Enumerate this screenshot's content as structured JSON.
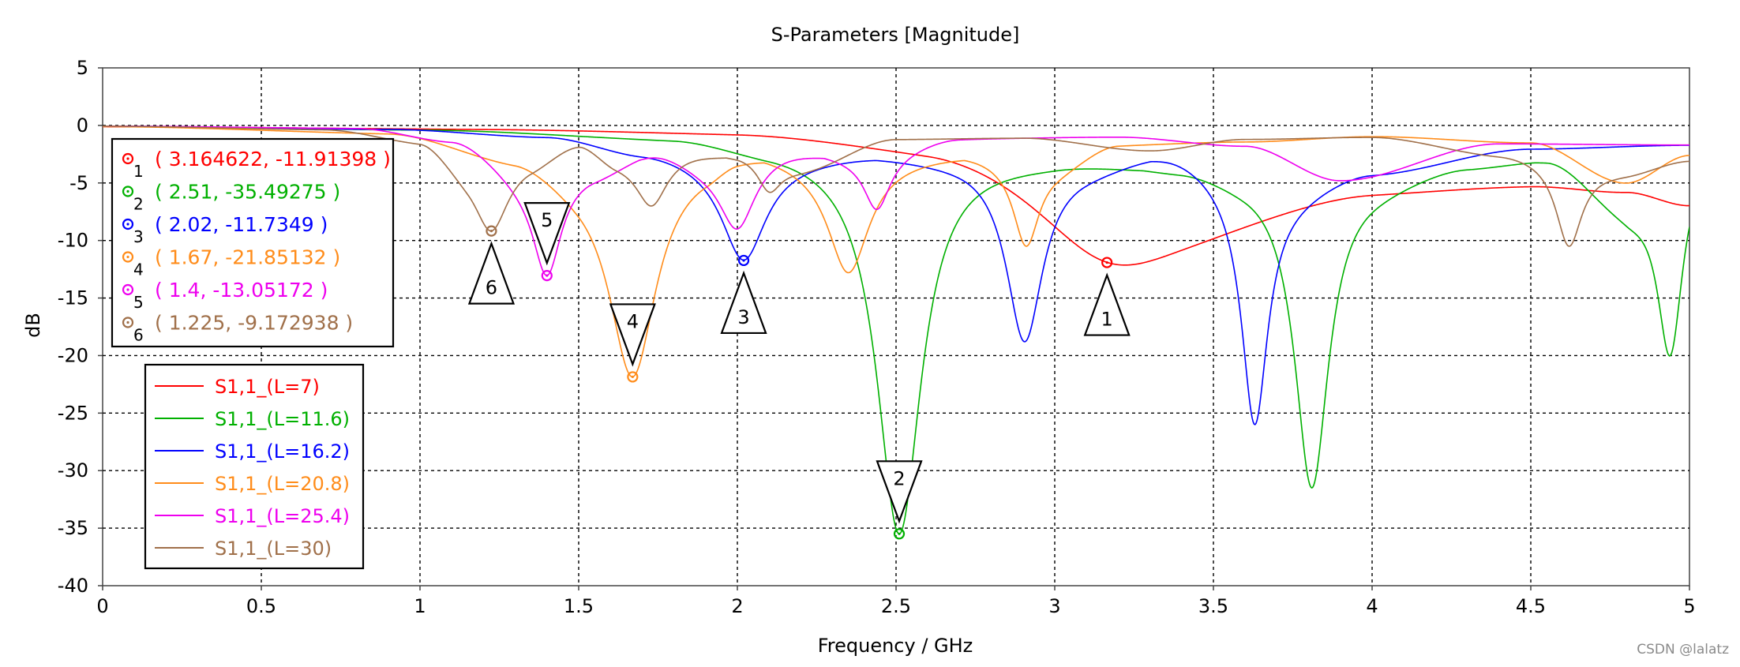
{
  "chart_data": {
    "type": "line",
    "title": "S-Parameters [Magnitude]",
    "xlabel": "Frequency / GHz",
    "ylabel": "dB",
    "xlim": [
      0,
      5
    ],
    "ylim": [
      -40,
      5
    ],
    "xticks": [
      0,
      0.5,
      1,
      1.5,
      2,
      2.5,
      3,
      3.5,
      4,
      4.5,
      5
    ],
    "xtick_labels": [
      "0",
      "0.5",
      "1",
      "1.5",
      "2",
      "2.5",
      "3",
      "3.5",
      "4",
      "4.5",
      "5"
    ],
    "yticks": [
      5,
      0,
      -5,
      -10,
      -15,
      -20,
      -25,
      -30,
      -35,
      -40
    ],
    "ytick_labels": [
      "5",
      "0",
      "-5",
      "-10",
      "-15",
      "-20",
      "-25",
      "-30",
      "-35",
      "-40"
    ],
    "grid": true,
    "legend_position": "lower-left",
    "series": [
      {
        "name": "S1,1_(L=7)",
        "color": "#ff0000",
        "base": [
          [
            0,
            -0.05
          ],
          [
            1.2,
            -0.2
          ],
          [
            2.0,
            -0.4
          ],
          [
            2.6,
            -1.2
          ],
          [
            3.5,
            -6.8
          ],
          [
            4.0,
            -5.3
          ],
          [
            4.5,
            -5.0
          ],
          [
            4.8,
            -5.6
          ],
          [
            5.0,
            -6.8
          ]
        ],
        "dips": [
          [
            3.165,
            -11.9,
            0.3
          ]
        ]
      },
      {
        "name": "S1,1_(L=11.6)",
        "color": "#00b000",
        "base": [
          [
            0,
            -0.05
          ],
          [
            1.0,
            -0.3
          ],
          [
            1.8,
            -0.9
          ],
          [
            2.1,
            -1.8
          ],
          [
            2.5,
            -2.3
          ],
          [
            3.0,
            -3.0
          ],
          [
            3.4,
            -3.7
          ],
          [
            3.6,
            -4.4
          ],
          [
            4.0,
            -4.8
          ],
          [
            4.3,
            -3.4
          ],
          [
            4.55,
            -3.0
          ],
          [
            4.8,
            -6.8
          ],
          [
            5.0,
            -1.8
          ]
        ],
        "dips": [
          [
            2.51,
            -35.5,
            0.085
          ],
          [
            3.81,
            -31.5,
            0.065
          ],
          [
            4.94,
            -20.0,
            0.05
          ]
        ]
      },
      {
        "name": "S1,1_(L=16.2)",
        "color": "#0000ff",
        "base": [
          [
            0,
            -0.05
          ],
          [
            0.9,
            -0.3
          ],
          [
            1.4,
            -0.9
          ],
          [
            1.7,
            -2.2
          ],
          [
            2.02,
            -3.2
          ],
          [
            2.4,
            -2.7
          ],
          [
            2.7,
            -3.0
          ],
          [
            3.1,
            -3.5
          ],
          [
            3.35,
            -2.6
          ],
          [
            3.7,
            -6.0
          ],
          [
            4.0,
            -4.0
          ],
          [
            4.5,
            -2.0
          ],
          [
            5.0,
            -1.7
          ]
        ],
        "dips": [
          [
            2.02,
            -11.7,
            0.085
          ],
          [
            2.905,
            -18.8,
            0.07
          ],
          [
            3.63,
            -26.0,
            0.05
          ]
        ]
      },
      {
        "name": "S1,1_(L=20.8)",
        "color": "#ff8c1a",
        "base": [
          [
            0,
            -0.05
          ],
          [
            0.9,
            -0.5
          ],
          [
            1.3,
            -2.5
          ],
          [
            1.5,
            -4.0
          ],
          [
            1.9,
            -3.0
          ],
          [
            2.0,
            -2.3
          ],
          [
            2.3,
            -3.0
          ],
          [
            2.7,
            -2.6
          ],
          [
            3.0,
            -3.5
          ],
          [
            3.2,
            -1.6
          ],
          [
            3.6,
            -1.4
          ],
          [
            4.0,
            -0.95
          ],
          [
            4.5,
            -1.5
          ],
          [
            4.8,
            -5.0
          ],
          [
            5.0,
            -2.6
          ]
        ],
        "dips": [
          [
            1.67,
            -21.85,
            0.09
          ],
          [
            2.35,
            -12.8,
            0.08
          ],
          [
            2.91,
            -10.5,
            0.05
          ]
        ]
      },
      {
        "name": "S1,1_(L=25.4)",
        "color": "#ee00ee",
        "base": [
          [
            0,
            -0.05
          ],
          [
            0.8,
            -0.2
          ],
          [
            1.1,
            -1.2
          ],
          [
            1.35,
            -4.5
          ],
          [
            1.55,
            -4.0
          ],
          [
            1.75,
            -2.4
          ],
          [
            1.9,
            -3.2
          ],
          [
            2.15,
            -2.2
          ],
          [
            2.4,
            -2.8
          ],
          [
            2.7,
            -1.1
          ],
          [
            3.2,
            -1.0
          ],
          [
            3.6,
            -1.8
          ],
          [
            3.9,
            -4.8
          ],
          [
            4.4,
            -1.6
          ],
          [
            5.0,
            -1.7
          ]
        ],
        "dips": [
          [
            1.4,
            -13.05,
            0.055
          ],
          [
            2.0,
            -9.0,
            0.07
          ],
          [
            2.44,
            -7.3,
            0.05
          ]
        ]
      },
      {
        "name": "S1,1_(L=30)",
        "color": "#a0704a",
        "base": [
          [
            0,
            -0.05
          ],
          [
            0.7,
            -0.3
          ],
          [
            1.0,
            -1.2
          ],
          [
            1.15,
            -3.5
          ],
          [
            1.35,
            -3.0
          ],
          [
            1.5,
            -1.6
          ],
          [
            1.62,
            -3.0
          ],
          [
            1.85,
            -2.4
          ],
          [
            2.0,
            -2.6
          ],
          [
            2.2,
            -3.8
          ],
          [
            2.5,
            -1.2
          ],
          [
            2.9,
            -1.1
          ],
          [
            3.3,
            -2.2
          ],
          [
            3.6,
            -1.2
          ],
          [
            4.0,
            -1.0
          ],
          [
            4.4,
            -2.4
          ],
          [
            4.8,
            -4.0
          ],
          [
            5.0,
            -3.0
          ]
        ],
        "dips": [
          [
            1.225,
            -9.17,
            0.065
          ],
          [
            1.73,
            -7.0,
            0.06
          ],
          [
            2.1,
            -5.8,
            0.045
          ],
          [
            4.62,
            -10.5,
            0.05
          ]
        ]
      }
    ],
    "markers": [
      {
        "id": "1",
        "x": 3.164622,
        "y": -11.91398,
        "label": "( 3.164622, -11.91398 )",
        "color": "#ff0000",
        "label_pos": "below"
      },
      {
        "id": "2",
        "x": 2.51,
        "y": -35.49275,
        "label": "( 2.51, -35.49275 )",
        "color": "#00b000",
        "label_pos": "above"
      },
      {
        "id": "3",
        "x": 2.02,
        "y": -11.7349,
        "label": "( 2.02, -11.7349 )",
        "color": "#0000ff",
        "label_pos": "below"
      },
      {
        "id": "4",
        "x": 1.67,
        "y": -21.85132,
        "label": "( 1.67, -21.85132 )",
        "color": "#ff8c1a",
        "label_pos": "above"
      },
      {
        "id": "5",
        "x": 1.4,
        "y": -13.05172,
        "label": "( 1.4, -13.05172 )",
        "color": "#ee00ee",
        "label_pos": "above"
      },
      {
        "id": "6",
        "x": 1.225,
        "y": -9.172938,
        "label": "( 1.225, -9.172938 )",
        "color": "#a0704a",
        "label_pos": "below"
      }
    ]
  },
  "watermark": "CSDN @lalatz"
}
